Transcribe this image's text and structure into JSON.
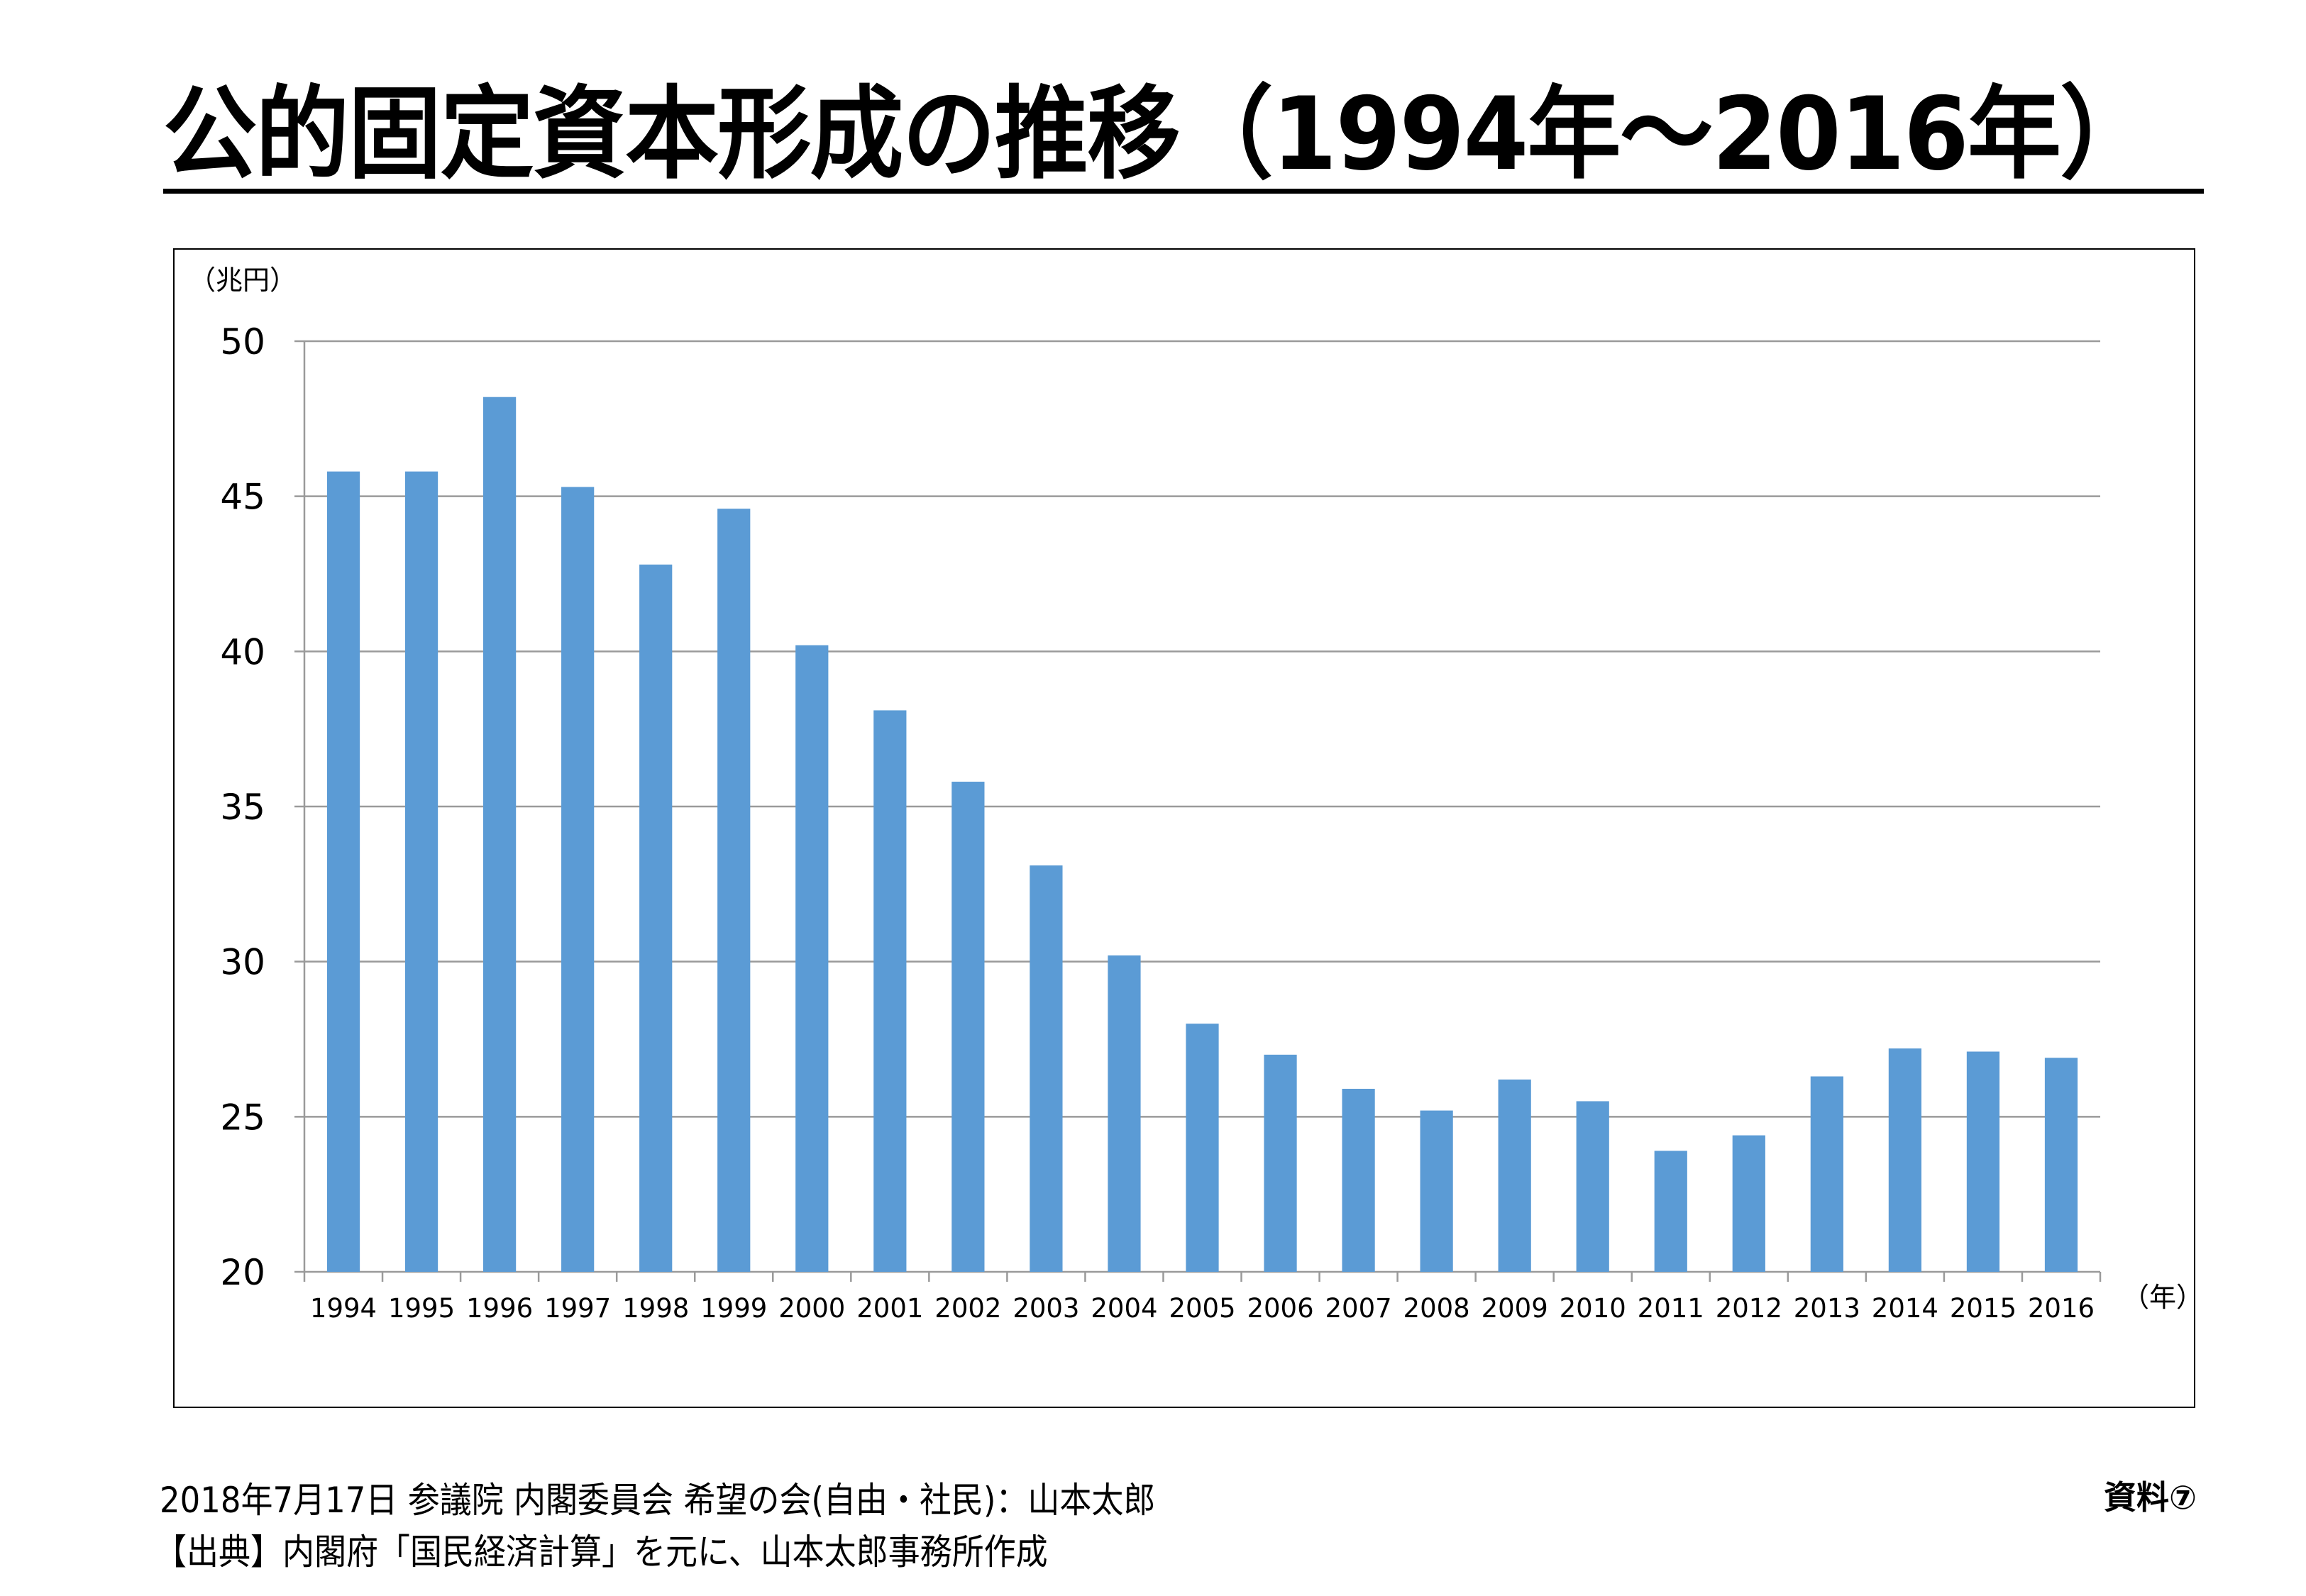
{
  "title": "公的固定資本形成の推移（1994年～2016年）",
  "footer": {
    "line1": "2018年7月17日 参議院 内閣委員会 希望の会(自由・社民)：山本太郎",
    "line2": "【出典】内閣府「国民経済計算」を元に、山本太郎事務所作成",
    "doc_label": "資料⑦"
  },
  "chart_data": {
    "type": "bar",
    "title": "",
    "ylabel": "（兆円）",
    "xlabel": "（年）",
    "ylim": [
      20,
      50
    ],
    "yticks": [
      20,
      25,
      30,
      35,
      40,
      45,
      50
    ],
    "grid": true,
    "legend": "none",
    "bar_color": "#5B9BD5",
    "categories": [
      "1994",
      "1995",
      "1996",
      "1997",
      "1998",
      "1999",
      "2000",
      "2001",
      "2002",
      "2003",
      "2004",
      "2005",
      "2006",
      "2007",
      "2008",
      "2009",
      "2010",
      "2011",
      "2012",
      "2013",
      "2014",
      "2015",
      "2016"
    ],
    "values": [
      45.8,
      45.8,
      48.2,
      45.3,
      42.8,
      44.6,
      40.2,
      38.1,
      35.8,
      33.1,
      30.2,
      28.0,
      27.0,
      25.9,
      25.2,
      26.2,
      25.5,
      23.9,
      24.4,
      26.3,
      27.2,
      27.1,
      26.9
    ]
  }
}
